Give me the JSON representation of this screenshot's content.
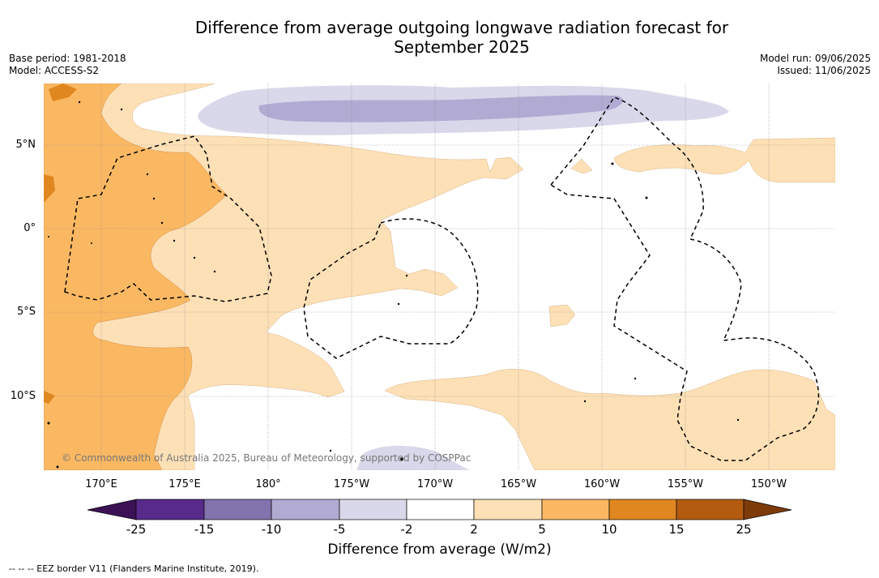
{
  "header": {
    "title_line1": "Difference from average outgoing longwave radiation forecast for",
    "title_line2": "September 2025",
    "base_period": "Base period: 1981-2018",
    "model": "Model: ACCESS-S2",
    "model_run": "Model run: 09/06/2025",
    "issued": "Issued: 11/06/2025"
  },
  "map": {
    "lat_labels": [
      "5°N",
      "0°",
      "5°S",
      "10°S"
    ],
    "lon_labels": [
      "170°E",
      "175°E",
      "180°",
      "175°W",
      "170°W",
      "165°W",
      "160°W",
      "155°W",
      "150°W"
    ],
    "credit": "© Commonwealth of Australia 2025, Bureau of Meteorology, supported by COSPPac",
    "eez_note": "--  --  -- EEZ border V11 (Flanders Marine Institute, 2019)."
  },
  "colorbar": {
    "title": "Difference from average (W/m2)",
    "ticks": [
      "-25",
      "-15",
      "-10",
      "-5",
      "-2",
      "2",
      "5",
      "10",
      "15",
      "25"
    ],
    "colors": {
      "below_-25": "#3d1255",
      "-25_-15": "#582a8a",
      "-15_-10": "#8273ad",
      "-10_-5": "#b1abd3",
      "-5_-2": "#d8d8ea",
      "-2_2": "#ffffff",
      "2_5": "#fde0b6",
      "5_10": "#fbb863",
      "10_15": "#e0871f",
      "15_25": "#b35c10",
      "above_25": "#7e3b0a"
    }
  }
}
